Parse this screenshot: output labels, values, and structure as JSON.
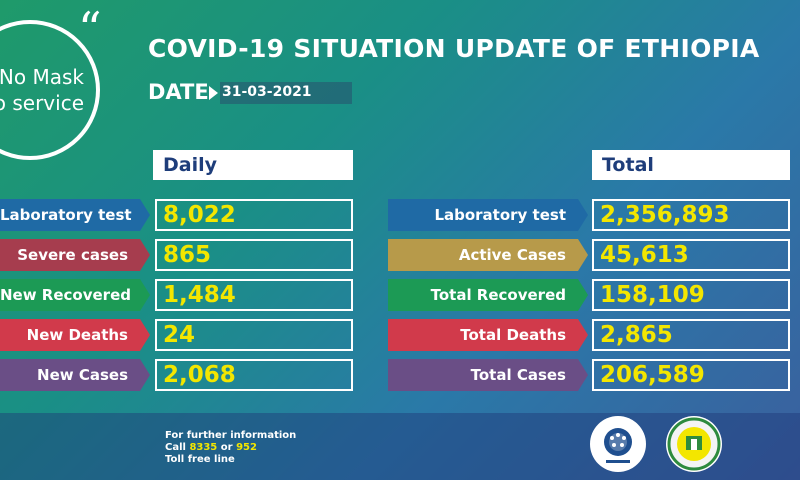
{
  "badge": {
    "line1": "No Mask",
    "line2": "No service"
  },
  "title": "COVID-19 SITUATION UPDATE OF ETHIOPIA",
  "date_label": "DATE",
  "date_value": "31-03-2021",
  "daily": {
    "header": "Daily",
    "rows": [
      {
        "label": "Laboratory test",
        "value": "8,022",
        "color": "#1f6aa5"
      },
      {
        "label": "Severe cases",
        "value": "865",
        "color": "#a63d4e"
      },
      {
        "label": "New Recovered",
        "value": "1,484",
        "color": "#1c9a55"
      },
      {
        "label": "New Deaths",
        "value": "24",
        "color": "#d13a4b"
      },
      {
        "label": "New Cases",
        "value": "2,068",
        "color": "#6a4e86"
      }
    ]
  },
  "total": {
    "header": "Total",
    "rows": [
      {
        "label": "Laboratory test",
        "value": "2,356,893",
        "color": "#1f6aa5"
      },
      {
        "label": "Active Cases",
        "value": "45,613",
        "color": "#b79a4a"
      },
      {
        "label": "Total Recovered",
        "value": "158,109",
        "color": "#1c9a55"
      },
      {
        "label": "Total Deaths",
        "value": "2,865",
        "color": "#d13a4b"
      },
      {
        "label": "Total Cases",
        "value": "206,589",
        "color": "#6a4e86"
      }
    ]
  },
  "footer": {
    "line1": "For further information",
    "call": "Call",
    "num1": "8335",
    "or": "or",
    "num2": "952",
    "line3": "Toll free line"
  }
}
